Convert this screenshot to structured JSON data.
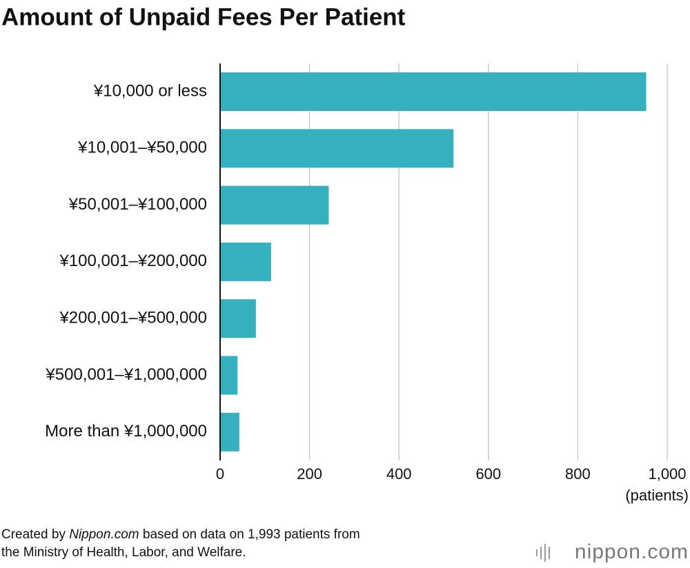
{
  "chart_data": {
    "type": "bar",
    "orientation": "horizontal",
    "title": "Amount of Unpaid Fees Per Patient",
    "categories": [
      "¥10,000 or less",
      "¥10,001–¥50,000",
      "¥50,001–¥100,000",
      "¥100,001–¥200,000",
      "¥200,001–¥500,000",
      "¥500,001–¥1,000,000",
      "More than ¥1,000,000"
    ],
    "values": [
      953,
      522,
      243,
      114,
      80,
      39,
      43
    ],
    "color": "#36b0bf",
    "xlim": [
      0,
      1000
    ],
    "xticks": [
      0,
      200,
      400,
      600,
      800,
      {
        "value": 1000,
        "label": "1,000"
      }
    ],
    "x_axis_label": "(patients)",
    "grid": true
  },
  "note": {
    "line1": [
      "Created by ",
      "Nippon.com",
      " based on data on 1,993 patients from"
    ],
    "line2": "the Ministry of Health, Labor, and Welfare."
  },
  "logo": "nippon.com"
}
